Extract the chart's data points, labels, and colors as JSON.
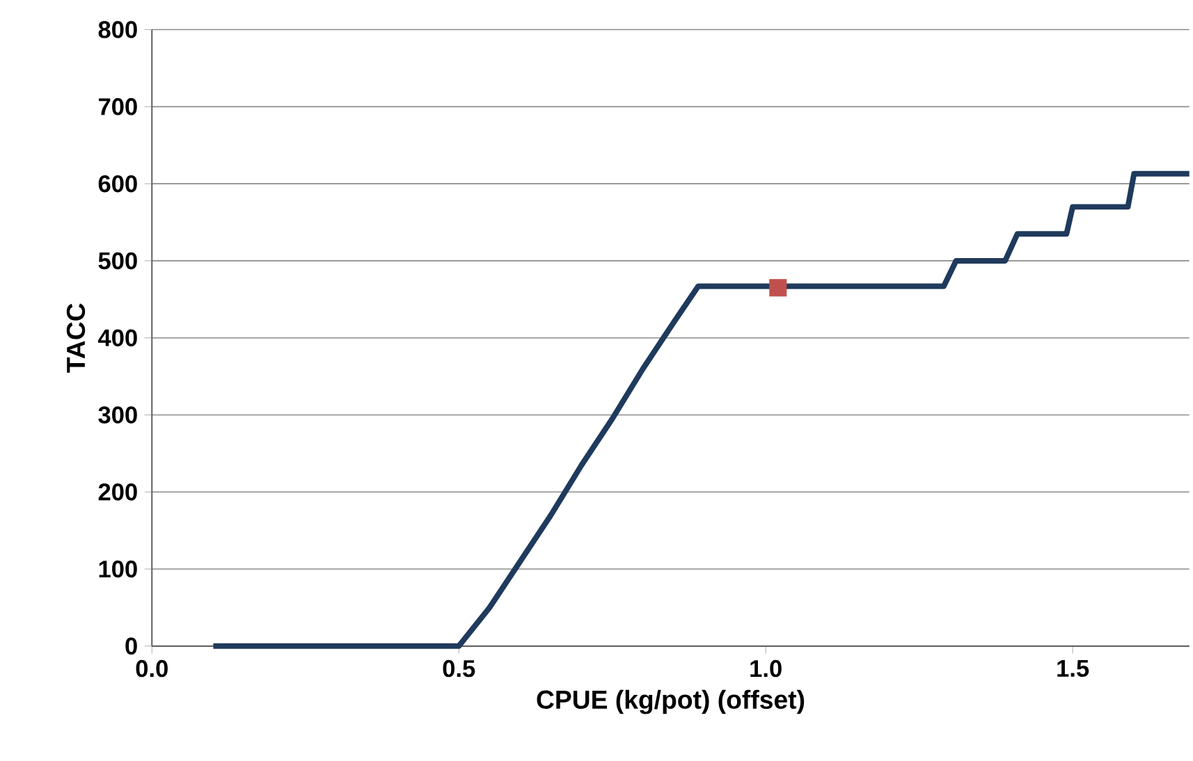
{
  "chart_data": {
    "type": "line",
    "xlabel": "CPUE (kg/pot) (offset)",
    "ylabel": "TACC",
    "xlim": [
      0,
      1.69
    ],
    "ylim": [
      0,
      800
    ],
    "xticks": [
      {
        "value": 0,
        "label": "0.0"
      },
      {
        "value": 0.5,
        "label": "0.5"
      },
      {
        "value": 1,
        "label": "1.0"
      },
      {
        "value": 1.5,
        "label": "1.5"
      }
    ],
    "yticks": [
      0,
      100,
      200,
      300,
      400,
      500,
      600,
      700,
      800
    ],
    "grid": "y",
    "series": [
      {
        "color": "#1f3a5c",
        "line_style": "solid",
        "marker": "none",
        "x": [
          0.1,
          0.5,
          0.55,
          0.6,
          0.65,
          0.7,
          0.75,
          0.8,
          0.85,
          0.89,
          1.29,
          1.31,
          1.39,
          1.41,
          1.49,
          1.5,
          1.59,
          1.6,
          1.69
        ],
        "values": [
          0,
          0,
          50,
          110,
          170,
          235,
          295,
          360,
          420,
          467,
          467,
          500,
          500,
          535,
          535,
          570,
          570,
          613,
          613
        ]
      },
      {
        "type": "scatter",
        "color": "#c0504d",
        "marker": "square",
        "x": [
          1.02
        ],
        "values": [
          465
        ]
      }
    ]
  }
}
